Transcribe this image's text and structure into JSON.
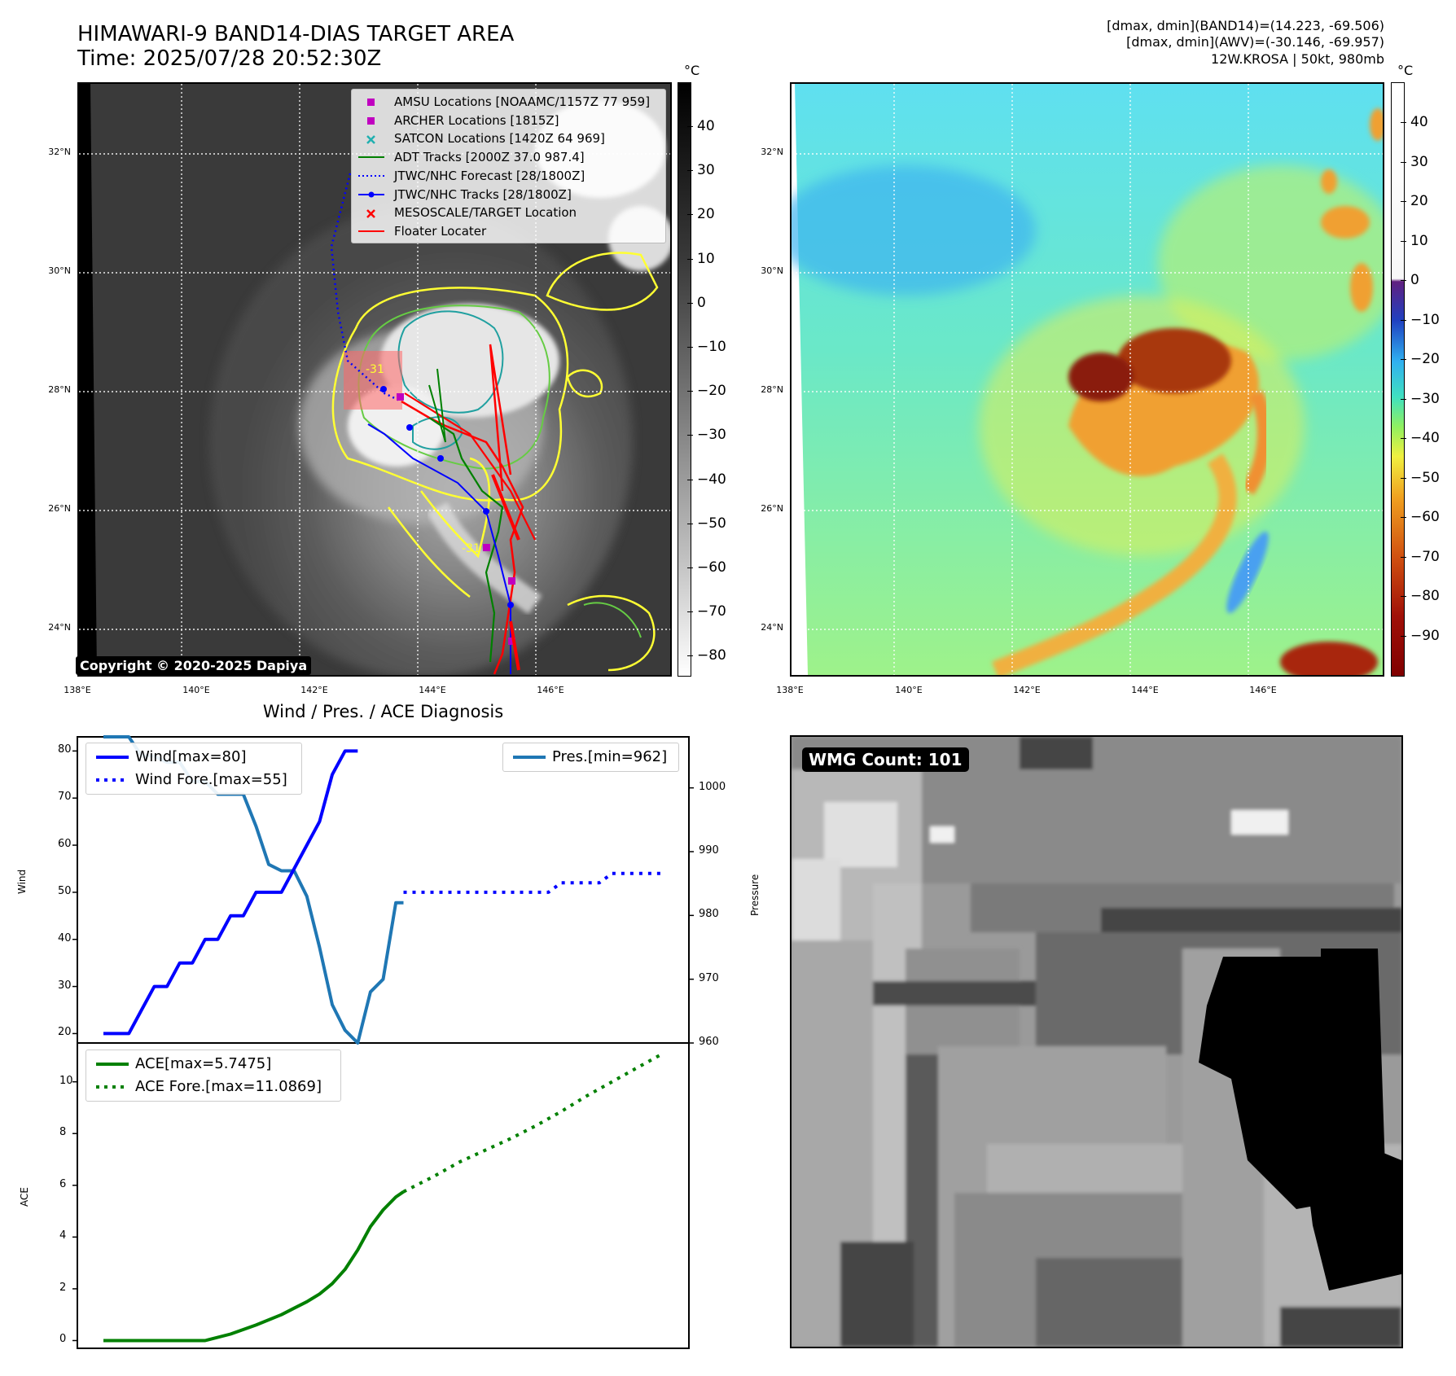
{
  "header": {
    "title_line1": "HIMAWARI-9 BAND14-DIAS TARGET AREA",
    "title_line2": "Time: 2025/07/28 20:52:30Z",
    "info_line1": "[dmax, dmin](BAND14)=(14.223, -69.506)",
    "info_line2": "[dmax, dmin](AWV)=(-30.146, -69.957)",
    "info_line3": "12W.KROSA | 50kt, 980mb"
  },
  "map_axes": {
    "lat_labels": [
      "32°N",
      "30°N",
      "28°N",
      "26°N",
      "24°N"
    ],
    "lon_labels": [
      "138°E",
      "140°E",
      "142°E",
      "144°E",
      "146°E"
    ]
  },
  "ir_panel": {
    "colorbar_unit": "°C",
    "colorbar_ticks": [
      "40",
      "30",
      "20",
      "10",
      "0",
      "−10",
      "−20",
      "−30",
      "−40",
      "−50",
      "−60",
      "−70",
      "−80"
    ],
    "copyright": "Copyright © 2020-2025 Dapiya",
    "legend": [
      {
        "label": "AMSU Locations [NOAAMC/1157Z 77 959]",
        "color": "#c000c0",
        "symbol": "square"
      },
      {
        "label": "ARCHER Locations [1815Z]",
        "color": "#c000c0",
        "symbol": "square"
      },
      {
        "label": "SATCON Locations [1420Z 64 969]",
        "color": "#20b0b0",
        "symbol": "x"
      },
      {
        "label": "ADT Tracks [2000Z 37.0 987.4]",
        "color": "#008000",
        "symbol": "line"
      },
      {
        "label": "JTWC/NHC Forecast [28/1800Z]",
        "color": "#0000ff",
        "symbol": "dotted"
      },
      {
        "label": "JTWC/NHC Tracks [28/1800Z]",
        "color": "#0000ff",
        "symbol": "line-dot"
      },
      {
        "label": "MESOSCALE/TARGET Location",
        "color": "#ff0000",
        "symbol": "x"
      },
      {
        "label": "Floater Locater",
        "color": "#ff0000",
        "symbol": "line"
      }
    ],
    "contour_labels": [
      "-31",
      "-31"
    ]
  },
  "wv_panel": {
    "colorbar_unit": "°C",
    "colorbar_ticks": [
      "40",
      "30",
      "20",
      "10",
      "0",
      "−10",
      "−20",
      "−30",
      "−40",
      "−50",
      "−60",
      "−70",
      "−80",
      "−90"
    ]
  },
  "chart_data": [
    {
      "type": "line",
      "title": "Wind / Pres. / ACE Diagnosis",
      "ylabel": "Wind",
      "ylim": [
        18,
        83
      ],
      "yticks": [
        "80",
        "70",
        "60",
        "50",
        "40",
        "30",
        "20"
      ],
      "y2label": "Pressure",
      "y2lim": [
        960,
        1008
      ],
      "y2ticks": [
        "1000",
        "990",
        "980",
        "970",
        "960"
      ],
      "series": [
        {
          "name": "Wind[max=80]",
          "color": "#0000ff",
          "style": "solid",
          "x": [
            0,
            1,
            2,
            3,
            4,
            5,
            6,
            7,
            8,
            9,
            10,
            11,
            12,
            13,
            14,
            15,
            16,
            17,
            18,
            19,
            20
          ],
          "values": [
            20,
            20,
            20,
            25,
            30,
            30,
            35,
            35,
            40,
            40,
            45,
            45,
            50,
            50,
            50,
            55,
            60,
            65,
            75,
            80,
            80
          ]
        },
        {
          "name": "Wind Fore.[max=55]",
          "color": "#0000ff",
          "style": "dotted",
          "x": [
            23.6,
            26,
            28,
            30,
            32,
            34,
            35,
            36,
            37,
            38,
            39,
            40,
            41,
            42,
            43,
            44
          ],
          "values": [
            50,
            50,
            50,
            50,
            50,
            50,
            50,
            52,
            52,
            52,
            52,
            54,
            54,
            54,
            54,
            54
          ]
        },
        {
          "name": "Pres.[min=962]",
          "color": "#1f77b4",
          "style": "solid",
          "axis": "y2",
          "x": [
            0,
            1,
            2,
            3,
            4,
            5,
            6,
            7,
            8,
            9,
            10,
            11,
            12,
            13,
            14,
            15,
            16,
            17,
            18,
            19,
            20,
            21,
            22,
            23,
            23.6
          ],
          "values": [
            1008,
            1008,
            1008,
            1005,
            1005,
            1004,
            1004,
            1001,
            1001,
            999,
            999,
            999,
            994,
            988,
            987,
            987,
            983,
            975,
            966,
            962,
            960,
            968,
            970,
            982,
            982
          ]
        }
      ]
    },
    {
      "type": "line",
      "ylabel": "ACE",
      "ylim": [
        -0.3,
        11.5
      ],
      "yticks": [
        "10",
        "8",
        "6",
        "4",
        "2",
        "0"
      ],
      "series": [
        {
          "name": "ACE[max=5.7475]",
          "color": "#008000",
          "style": "solid",
          "x": [
            0,
            2,
            4,
            6,
            8,
            10,
            12,
            14,
            15,
            16,
            17,
            18,
            19,
            20,
            21,
            22,
            23,
            23.6
          ],
          "values": [
            0,
            0,
            0,
            0,
            0,
            0.25,
            0.6,
            1.0,
            1.25,
            1.5,
            1.8,
            2.2,
            2.75,
            3.5,
            4.4,
            5.05,
            5.55,
            5.75
          ]
        },
        {
          "name": "ACE Fore.[max=11.0869]",
          "color": "#008000",
          "style": "dotted",
          "x": [
            23.6,
            26,
            28,
            30,
            32,
            34,
            36,
            38,
            40,
            42,
            44
          ],
          "values": [
            5.75,
            6.35,
            6.9,
            7.35,
            7.8,
            8.3,
            8.85,
            9.45,
            10.0,
            10.55,
            11.09
          ]
        }
      ]
    }
  ],
  "wmg_panel": {
    "label": "WMG Count: 101"
  }
}
